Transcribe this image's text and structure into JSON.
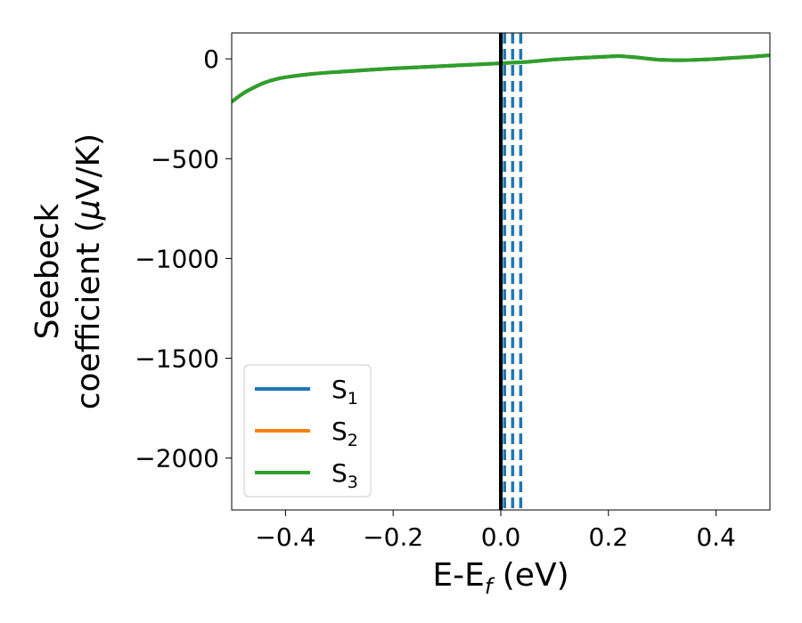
{
  "chart_data": {
    "type": "line",
    "xlabel": "E-E",
    "xlabel_sub": "f",
    "xlabel_unit": " (eV)",
    "ylabel_line1": "Seebeck",
    "ylabel_line2": "coefficient  (",
    "ylabel_mu": "μ",
    "ylabel_unit": "V/K)",
    "xlim": [
      -0.5,
      0.5
    ],
    "ylim": [
      -2260,
      130
    ],
    "xticks": [
      -0.4,
      -0.2,
      0.0,
      0.2,
      0.4
    ],
    "xtick_labels": [
      "−0.4",
      "−0.2",
      "0.0",
      "0.2",
      "0.4"
    ],
    "yticks": [
      0,
      -500,
      -1000,
      -1500,
      -2000
    ],
    "ytick_labels": [
      "0",
      "−500",
      "−1000",
      "−1500",
      "−2000"
    ],
    "grid": false,
    "legend_position": "lower-left",
    "reference_lines": {
      "fermi_level": {
        "x": 0.0,
        "color": "#000000",
        "style": "solid"
      },
      "dashed": {
        "x": [
          0.007,
          0.022,
          0.037
        ],
        "color": "#1f77b4",
        "style": "dashed"
      }
    },
    "series": [
      {
        "name": "S",
        "sub": "1",
        "color": "#1f77b4",
        "x": [
          -0.5,
          -0.48,
          -0.46,
          -0.44,
          -0.42,
          -0.4,
          -0.35,
          -0.3,
          -0.2,
          -0.1,
          0.0,
          0.05,
          0.1,
          0.15,
          0.2,
          0.22,
          0.25,
          0.3,
          0.35,
          0.4,
          0.45,
          0.5
        ],
        "y": [
          -215,
          -175,
          -145,
          -120,
          -103,
          -92,
          -75,
          -65,
          -48,
          -35,
          -22,
          -15,
          -3,
          5,
          12,
          14,
          8,
          -5,
          -6,
          0,
          8,
          18
        ]
      },
      {
        "name": "S",
        "sub": "2",
        "color": "#ff7f0e",
        "x": [
          -0.5,
          -0.48,
          -0.46,
          -0.44,
          -0.42,
          -0.4,
          -0.35,
          -0.3,
          -0.2,
          -0.1,
          0.0,
          0.05,
          0.1,
          0.15,
          0.2,
          0.22,
          0.25,
          0.3,
          0.35,
          0.4,
          0.45,
          0.5
        ],
        "y": [
          -215,
          -175,
          -145,
          -120,
          -103,
          -92,
          -75,
          -65,
          -48,
          -35,
          -22,
          -15,
          -3,
          5,
          12,
          14,
          8,
          -5,
          -6,
          0,
          8,
          18
        ]
      },
      {
        "name": "S",
        "sub": "3",
        "color": "#2ca02c",
        "x": [
          -0.5,
          -0.48,
          -0.46,
          -0.44,
          -0.42,
          -0.4,
          -0.35,
          -0.3,
          -0.2,
          -0.1,
          0.0,
          0.05,
          0.1,
          0.15,
          0.2,
          0.22,
          0.25,
          0.3,
          0.35,
          0.4,
          0.45,
          0.5
        ],
        "y": [
          -215,
          -175,
          -145,
          -120,
          -103,
          -92,
          -75,
          -65,
          -48,
          -35,
          -22,
          -15,
          -3,
          5,
          12,
          14,
          8,
          -5,
          -6,
          0,
          8,
          18
        ]
      }
    ]
  }
}
